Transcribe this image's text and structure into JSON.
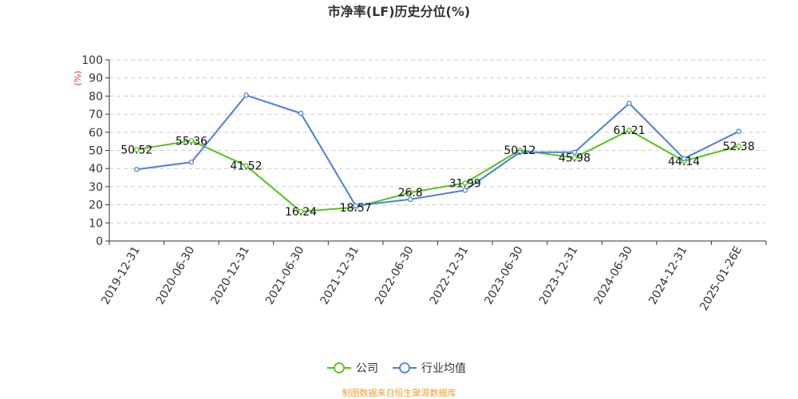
{
  "chart_data": {
    "type": "line",
    "title": "市净率(LF)历史分位(%)",
    "ylabel": "(%)",
    "ylim": [
      0,
      100
    ],
    "yticks": [
      0,
      10,
      20,
      30,
      40,
      50,
      60,
      70,
      80,
      90,
      100
    ],
    "grid": true,
    "legend_position": "bottom",
    "categories": [
      "2019-12-31",
      "2020-06-30",
      "2020-12-31",
      "2021-06-30",
      "2021-12-31",
      "2022-06-30",
      "2022-12-31",
      "2023-06-30",
      "2023-12-31",
      "2024-06-30",
      "2024-12-31",
      "2025-01-26E"
    ],
    "series": [
      {
        "name": "公司",
        "color": "#52c41a",
        "show_labels": true,
        "values": [
          50.52,
          55.36,
          41.52,
          16.24,
          18.57,
          26.8,
          31.99,
          50.12,
          45.98,
          61.21,
          44.14,
          52.38
        ],
        "labels": [
          "50.52",
          "55.36",
          "41.52",
          "16.24",
          "18.57",
          "26.8",
          "31.99",
          "50.12",
          "45.98",
          "61.21",
          "44.14",
          "52.38"
        ]
      },
      {
        "name": "行业均值",
        "color": "#4a7fdb",
        "show_labels": false,
        "values": [
          39.5,
          43.5,
          80.5,
          70.5,
          19.5,
          23,
          28,
          49,
          49,
          76,
          45.5,
          60.5
        ]
      }
    ]
  },
  "source": {
    "text": "制图数据来自恒生聚源数据库",
    "color": "#e8a13a"
  }
}
